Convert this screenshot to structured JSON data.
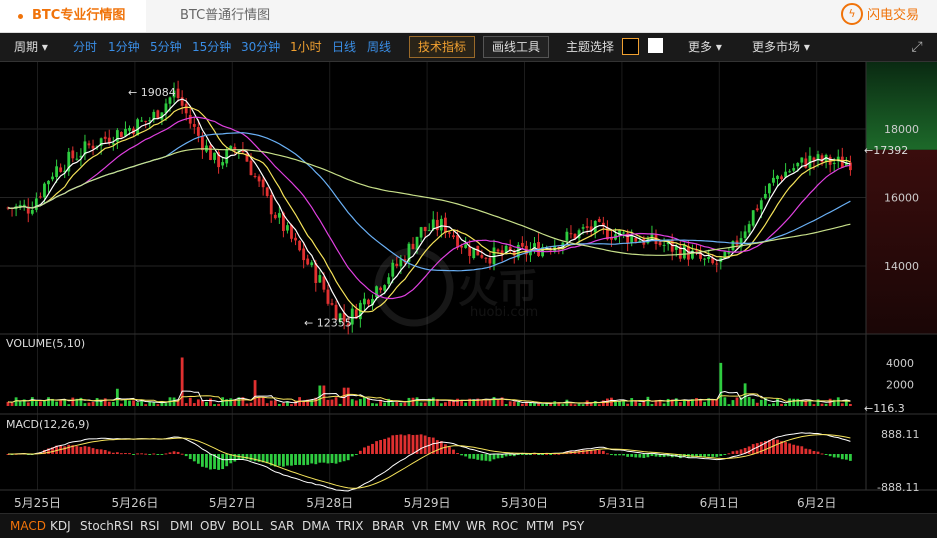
{
  "tabs": {
    "active": "BTC专业行情图",
    "inactive": "BTC普通行情图"
  },
  "brand": {
    "name": "闪电交易",
    "icon": "lightning-icon"
  },
  "toolbar": {
    "period_label": "周期",
    "intervals": [
      "分时",
      "1分钟",
      "5分钟",
      "15分钟",
      "30分钟",
      "1小时",
      "日线",
      "周线"
    ],
    "selected_interval": "1小时",
    "indicator_button": "技术指标",
    "draw_button": "画线工具",
    "theme_label": "主题选择",
    "more_label": "更多",
    "more_markets_label": "更多市场"
  },
  "watermark": {
    "text": "火币",
    "sub": "huobi.com"
  },
  "bottom_tabs": [
    "MACD",
    "KDJ",
    "StochRSI",
    "RSI",
    "DMI",
    "OBV",
    "BOLL",
    "SAR",
    "DMA",
    "TRIX",
    "BRAR",
    "VR",
    "EMV",
    "WR",
    "ROC",
    "MTM",
    "PSY"
  ],
  "selected_bottom_tab": "MACD",
  "chart_data": [
    {
      "type": "candlestick",
      "title": "",
      "x": [
        "5月25日",
        "5月26日",
        "5月27日",
        "5月28日",
        "5月29日",
        "5月30日",
        "5月31日",
        "6月1日",
        "6月2日"
      ],
      "ylim": [
        12000,
        19400
      ],
      "yticks": [
        "18000",
        "16000",
        "14000"
      ],
      "close_path": [
        [
          "5月24日 22:00",
          15700
        ],
        [
          "5月25日 04:00",
          16800
        ],
        [
          "5月25日 14:00",
          17600
        ],
        [
          "5月26日 04:00",
          18300
        ],
        [
          "5月26日 10:00",
          19084
        ],
        [
          "5月26日 14:00",
          18100
        ],
        [
          "5月26日 20:00",
          17000
        ],
        [
          "5月27日 02:00",
          17500
        ],
        [
          "5月27日 08:00",
          16000
        ],
        [
          "5月27日 16:00",
          14500
        ],
        [
          "5月27日 22:00",
          13500
        ],
        [
          "5月28日 00:00",
          12900
        ],
        [
          "5月28日 04:00",
          12355
        ],
        [
          "5月28日 10:00",
          13200
        ],
        [
          "5月28日 18:00",
          14200
        ],
        [
          "5月28日 22:00",
          15000
        ],
        [
          "5月29日 04:00",
          15200
        ],
        [
          "5月29日 10:00",
          14500
        ],
        [
          "5月29日 16:00",
          14300
        ],
        [
          "5月30日 00:00",
          14400
        ],
        [
          "5月30日 08:00",
          14700
        ],
        [
          "5月30日 16:00",
          15100
        ],
        [
          "5月31日 00:00",
          14900
        ],
        [
          "5月31日 08:00",
          14700
        ],
        [
          "5月31日 16:00",
          14400
        ],
        [
          "5月31日 22:00",
          14000
        ],
        [
          "6月1日 02:00",
          14200
        ],
        [
          "6月1日 08:00",
          15500
        ],
        [
          "6月1日 14:00",
          16600
        ],
        [
          "6月1日 22:00",
          17100
        ],
        [
          "6月2日 06:00",
          17000
        ],
        [
          "6月2日 14:00",
          17200
        ],
        [
          "6月2日 20:00",
          17392
        ]
      ],
      "annotations": [
        {
          "text": "19084",
          "value": 19084
        },
        {
          "text": "12355",
          "value": 12355
        },
        {
          "text": "17392",
          "value": 17392,
          "note": "current price"
        }
      ],
      "moving_averages": [
        {
          "color": "#ffffff"
        },
        {
          "color": "#f5e35a"
        },
        {
          "color": "#e040e0"
        },
        {
          "color": "#6ab0f5"
        },
        {
          "color": "#c8e08a"
        }
      ],
      "up_color": "#2ecc40",
      "down_color": "#e03030"
    },
    {
      "type": "bar",
      "title": "VOLUME(5,10)",
      "yticks": [
        "4000",
        "2000"
      ],
      "ylim": [
        0,
        4500
      ],
      "last_value": "116.3",
      "notable_bars": [
        [
          "5月25日 20:00",
          1600
        ],
        [
          "5月26日 12:00",
          4500
        ],
        [
          "5月27日 06:00",
          2400
        ],
        [
          "5月27日 22:00",
          1900
        ],
        [
          "5月28日 04:00",
          1700
        ],
        [
          "6月1日 00:00",
          4000
        ],
        [
          "6月1日 06:00",
          2100
        ]
      ]
    },
    {
      "type": "macd",
      "title": "MACD(12,26,9)",
      "yticks": [
        "888.11",
        "-888.11"
      ],
      "ylim": [
        -888.11,
        888.11
      ]
    }
  ]
}
